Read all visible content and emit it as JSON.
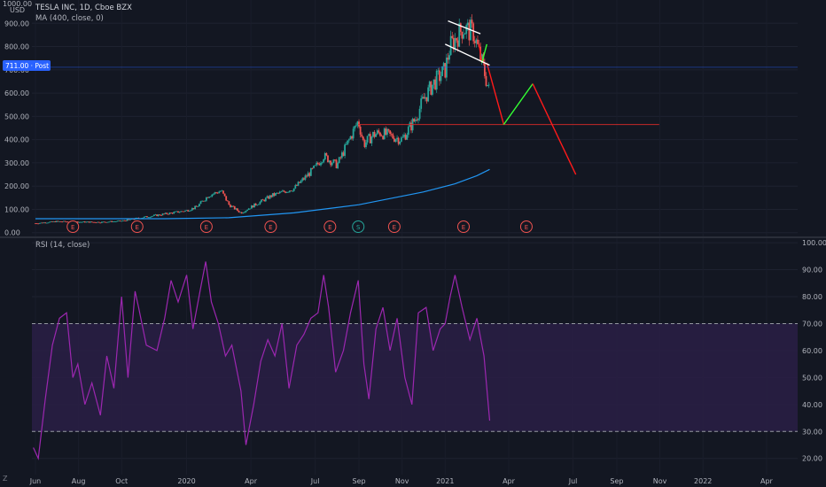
{
  "header": {
    "currency_top": "1000.00",
    "currency": "USD",
    "symbol": "TESLA INC, 1D, Cboe BZX",
    "ma_label": "MA (400, close, 0)"
  },
  "price_badge": {
    "text": "711.00 · Post",
    "value": 711
  },
  "rsi_label": "RSI (14, close)",
  "bottom_corner": "Z",
  "colors": {
    "background": "#131722",
    "candle_up": "#26a69a",
    "candle_down": "#ef5350",
    "ma": "#2196f3",
    "rsi": "#9c27b0",
    "rsi_band": "#2a1f45",
    "badge": "#2962ff",
    "proj_down": "#ff1a1a",
    "proj_up": "#33ff33",
    "support": "#c62828"
  },
  "earnings_markers": [
    {
      "date": "2019-07-24",
      "label": "E",
      "kind": "earnings"
    },
    {
      "date": "2019-10-23",
      "label": "E",
      "kind": "earnings"
    },
    {
      "date": "2020-01-29",
      "label": "E",
      "kind": "earnings"
    },
    {
      "date": "2020-04-29",
      "label": "E",
      "kind": "earnings"
    },
    {
      "date": "2020-07-22",
      "label": "E",
      "kind": "earnings"
    },
    {
      "date": "2020-08-31",
      "label": "S",
      "kind": "split"
    },
    {
      "date": "2020-10-21",
      "label": "E",
      "kind": "earnings"
    },
    {
      "date": "2021-01-27",
      "label": "E",
      "kind": "earnings"
    },
    {
      "date": "2021-04-26",
      "label": "E",
      "kind": "earnings"
    }
  ],
  "chart_data": [
    {
      "type": "line",
      "panel": "price",
      "title": "TESLA INC, 1D, Cboe BZX",
      "ylabel": "USD",
      "ylim": [
        -20,
        1000
      ],
      "ticks_y": [
        "0.00",
        "100.00",
        "200.00",
        "300.00",
        "400.00",
        "500.00",
        "600.00",
        "700.00",
        "800.00",
        "900.00"
      ],
      "x_ticks": [
        "Jun",
        "Aug",
        "Oct",
        "2020",
        "Apr",
        "Jul",
        "Sep",
        "Nov",
        "2021",
        "Apr",
        "Jul",
        "Sep",
        "Nov",
        "2022",
        "Apr"
      ],
      "x_tick_dates": [
        "2019-06-01",
        "2019-08-01",
        "2019-10-01",
        "2020-01-01",
        "2020-04-01",
        "2020-07-01",
        "2020-09-01",
        "2020-11-01",
        "2021-01-01",
        "2021-04-01",
        "2021-07-01",
        "2021-09-01",
        "2021-11-01",
        "2022-01-01",
        "2022-04-01"
      ],
      "xlim": [
        "2019-05-27",
        "2022-05-15"
      ],
      "series": [
        {
          "name": "TESLA INC",
          "style": "candles",
          "x": [
            "2019-06-01",
            "2019-07-01",
            "2019-08-01",
            "2019-09-01",
            "2019-10-01",
            "2019-10-20",
            "2019-11-01",
            "2019-12-01",
            "2020-01-01",
            "2020-01-15",
            "2020-02-01",
            "2020-02-19",
            "2020-03-01",
            "2020-03-18",
            "2020-04-01",
            "2020-05-01",
            "2020-06-01",
            "2020-07-01",
            "2020-07-13",
            "2020-08-01",
            "2020-08-31",
            "2020-09-08",
            "2020-09-21",
            "2020-10-01",
            "2020-11-01",
            "2020-11-20",
            "2020-12-01",
            "2020-12-15",
            "2021-01-01",
            "2021-01-08",
            "2021-01-26",
            "2021-02-10",
            "2021-02-23",
            "2021-03-05"
          ],
          "values": [
            40,
            48,
            46,
            45,
            50,
            60,
            66,
            80,
            95,
            110,
            160,
            180,
            120,
            85,
            110,
            160,
            190,
            280,
            330,
            290,
            480,
            380,
            420,
            430,
            400,
            490,
            570,
            640,
            700,
            800,
            880,
            860,
            720,
            600
          ]
        },
        {
          "name": "MA (400, close, 0)",
          "style": "line",
          "x": [
            "2019-06-01",
            "2019-09-01",
            "2019-12-01",
            "2020-03-01",
            "2020-06-01",
            "2020-09-01",
            "2020-12-01",
            "2021-01-15",
            "2021-02-15",
            "2021-03-05"
          ],
          "values": [
            60,
            60,
            60,
            64,
            85,
            120,
            175,
            210,
            245,
            272
          ]
        },
        {
          "name": "Support level",
          "style": "hline",
          "x": [
            "2020-08-31",
            "2021-10-31"
          ],
          "values": [
            465,
            465
          ]
        },
        {
          "name": "Projection down 1",
          "style": "line",
          "x": [
            "2021-03-01",
            "2021-03-25"
          ],
          "values": [
            730,
            465
          ]
        },
        {
          "name": "Projection up",
          "style": "line",
          "x": [
            "2021-03-25",
            "2021-05-05"
          ],
          "values": [
            465,
            640
          ]
        },
        {
          "name": "Projection down 2",
          "style": "line",
          "x": [
            "2021-05-05",
            "2021-07-05"
          ],
          "values": [
            640,
            250
          ]
        },
        {
          "name": "Flag small down",
          "style": "line",
          "x": [
            "2021-02-18",
            "2021-02-22"
          ],
          "values": [
            810,
            730
          ]
        },
        {
          "name": "Flag small up",
          "style": "line",
          "x": [
            "2021-02-22",
            "2021-03-01"
          ],
          "values": [
            730,
            810
          ]
        },
        {
          "name": "Channel upper",
          "style": "line",
          "x": [
            "2021-01-05",
            "2021-02-20"
          ],
          "values": [
            910,
            855
          ]
        },
        {
          "name": "Channel lower",
          "style": "line",
          "x": [
            "2021-01-01",
            "2021-03-05"
          ],
          "values": [
            810,
            720
          ]
        }
      ]
    },
    {
      "type": "line",
      "panel": "rsi",
      "title": "RSI (14, close)",
      "ylim": [
        14,
        102
      ],
      "ticks_y": [
        "20.00",
        "30.00",
        "40.00",
        "50.00",
        "60.00",
        "70.00",
        "80.00",
        "90.00",
        "100.00"
      ],
      "band": [
        30,
        70
      ],
      "xlim": [
        "2019-05-27",
        "2022-05-15"
      ],
      "series": [
        {
          "name": "RSI (14, close)",
          "x": [
            "2019-05-29",
            "2019-06-05",
            "2019-06-15",
            "2019-06-25",
            "2019-07-05",
            "2019-07-15",
            "2019-07-24",
            "2019-07-31",
            "2019-08-10",
            "2019-08-20",
            "2019-09-01",
            "2019-09-10",
            "2019-09-20",
            "2019-10-01",
            "2019-10-10",
            "2019-10-20",
            "2019-10-25",
            "2019-11-05",
            "2019-11-20",
            "2019-12-01",
            "2019-12-10",
            "2019-12-20",
            "2020-01-01",
            "2020-01-10",
            "2020-01-20",
            "2020-01-28",
            "2020-02-05",
            "2020-02-15",
            "2020-02-25",
            "2020-03-05",
            "2020-03-18",
            "2020-03-25",
            "2020-04-05",
            "2020-04-15",
            "2020-04-25",
            "2020-05-05",
            "2020-05-15",
            "2020-05-25",
            "2020-06-05",
            "2020-06-15",
            "2020-06-25",
            "2020-07-05",
            "2020-07-13",
            "2020-07-20",
            "2020-07-30",
            "2020-08-10",
            "2020-08-20",
            "2020-08-31",
            "2020-09-08",
            "2020-09-15",
            "2020-09-25",
            "2020-10-05",
            "2020-10-15",
            "2020-10-25",
            "2020-11-05",
            "2020-11-15",
            "2020-11-24",
            "2020-12-05",
            "2020-12-15",
            "2020-12-25",
            "2021-01-01",
            "2021-01-08",
            "2021-01-15",
            "2021-01-25",
            "2021-02-05",
            "2021-02-15",
            "2021-02-25",
            "2021-03-05"
          ],
          "values": [
            24,
            20,
            42,
            62,
            72,
            74,
            50,
            55,
            40,
            48,
            36,
            58,
            46,
            80,
            50,
            82,
            76,
            62,
            60,
            72,
            86,
            78,
            88,
            68,
            82,
            93,
            78,
            70,
            58,
            62,
            45,
            25,
            40,
            56,
            64,
            58,
            70,
            46,
            62,
            66,
            72,
            74,
            88,
            76,
            52,
            60,
            74,
            86,
            55,
            42,
            68,
            76,
            60,
            72,
            50,
            40,
            74,
            76,
            60,
            68,
            70,
            80,
            88,
            76,
            64,
            72,
            58,
            34
          ]
        }
      ]
    }
  ]
}
